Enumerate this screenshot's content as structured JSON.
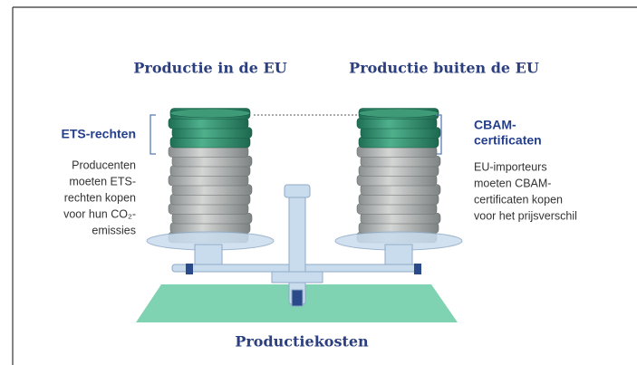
{
  "left": {
    "heading": "Productie in de EU",
    "label": [
      "ETS-rechten"
    ],
    "description": [
      "Producenten",
      "moeten ETS-",
      "rechten kopen",
      "voor hun CO₂-",
      "emissies"
    ]
  },
  "right": {
    "heading": "Productie buiten de EU",
    "label": [
      "CBAM-",
      "certificaten"
    ],
    "description": [
      "EU-importeurs",
      "moeten CBAM-",
      "certificaten kopen",
      "voor het prijsverschil"
    ]
  },
  "footer": "Productiekosten"
}
